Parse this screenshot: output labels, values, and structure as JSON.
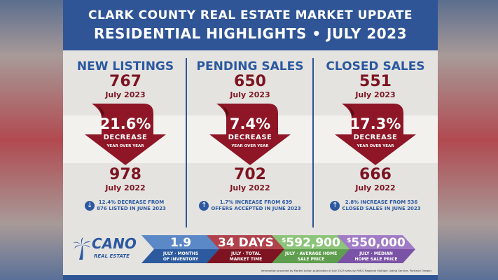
{
  "header": {
    "line1": "CLARK COUNTY REAL ESTATE MARKET UPDATE",
    "line2": "RESIDENTIAL HIGHLIGHTS • JULY 2023"
  },
  "columns": [
    {
      "title": "NEW LISTINGS",
      "current": "767",
      "current_label": "July 2023",
      "change_pct": "21.6%",
      "change_word": "DECREASE",
      "change_sub": "YEAR OVER YEAR",
      "prior": "978",
      "prior_label": "July 2022",
      "note_icon": "down-arrow-icon",
      "note_line1": "12.4% DECREASE FROM",
      "note_line2": "876 LISTED IN JUNE 2023"
    },
    {
      "title": "PENDING SALES",
      "current": "650",
      "current_label": "July 2023",
      "change_pct": "7.4%",
      "change_word": "DECREASE",
      "change_sub": "YEAR OVER YEAR",
      "prior": "702",
      "prior_label": "July 2022",
      "note_icon": "up-arrow-icon",
      "note_line1": "1.7% INCREASE FROM 639",
      "note_line2": "OFFERS ACCEPTED IN JUNE 2023"
    },
    {
      "title": "CLOSED SALES",
      "current": "551",
      "current_label": "July 2023",
      "change_pct": "17.3%",
      "change_word": "DECREASE",
      "change_sub": "YEAR OVER YEAR",
      "prior": "666",
      "prior_label": "July 2022",
      "note_icon": "up-arrow-icon",
      "note_line1": "2.8% INCREASE FROM 536",
      "note_line2": "CLOSED SALES IN JUNE 2023"
    }
  ],
  "logo": {
    "name": "CANO",
    "sub": "REAL ESTATE"
  },
  "stats": [
    {
      "prefix": "",
      "value": "1.9",
      "label1": "JULY · MONTHS",
      "label2": "OF INVENTORY",
      "color_top": "#5b88c6",
      "color_bottom": "#2d5a9e"
    },
    {
      "prefix": "",
      "value": "34 DAYS",
      "label1": "JULY · TOTAL",
      "label2": "MARKET TIME",
      "color_top": "#b0424c",
      "color_bottom": "#7e1422"
    },
    {
      "prefix": "$",
      "value": "592,900",
      "label1": "JULY · AVERAGE HOME",
      "label2": "SALE PRICE",
      "color_top": "#8cc47a",
      "color_bottom": "#5f9e4e"
    },
    {
      "prefix": "$",
      "value": "550,000",
      "label1": "JULY · MEDIAN",
      "label2": "HOME SALE PRICE",
      "color_top": "#a07cc6",
      "color_bottom": "#7a52a6"
    }
  ],
  "source": "Information provided by Market Action publication of July 2023 stats by RMLS Regional Multiple Listing Service, Portland Oregon.",
  "colors": {
    "blue": "#2f5597",
    "maroon": "#7d1421"
  }
}
